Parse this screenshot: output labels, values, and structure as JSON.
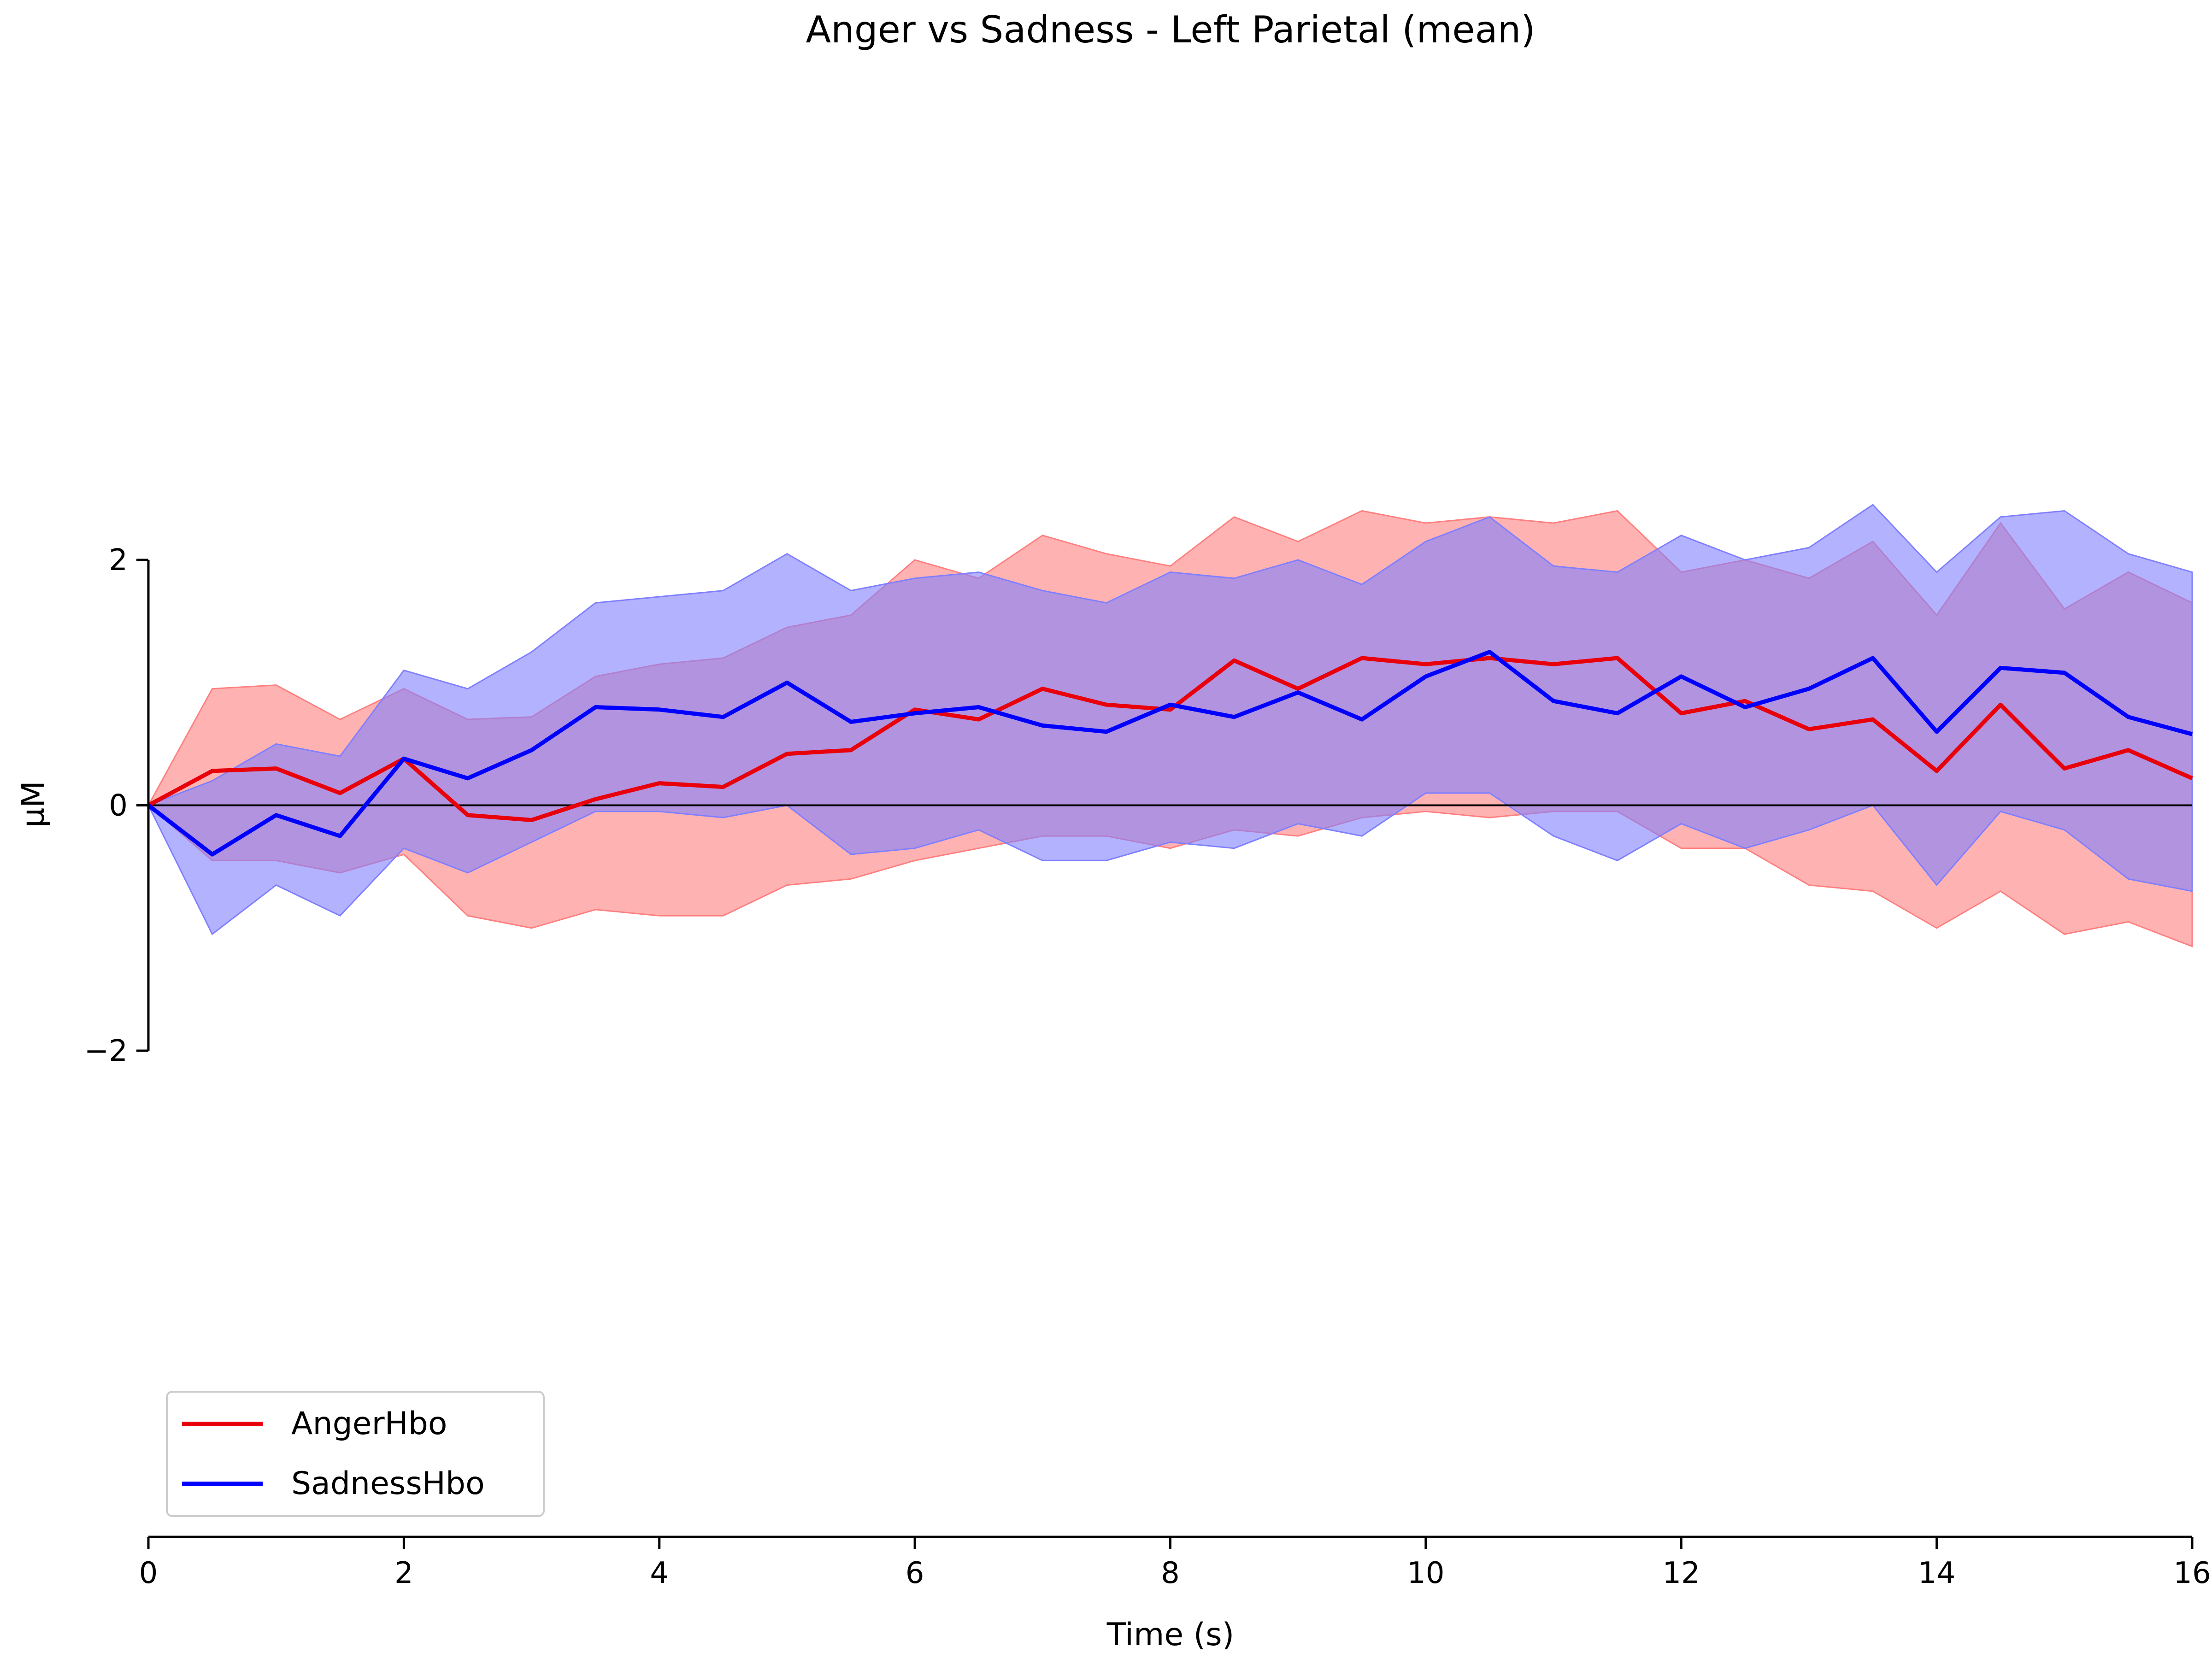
{
  "chart_data": {
    "type": "line",
    "title": "Anger vs Sadness - Left Parietal (mean)",
    "xlabel": "Time (s)",
    "ylabel": "μM",
    "xlim": [
      0,
      16
    ],
    "ylim": [
      -2,
      2
    ],
    "xticks": [
      0,
      2,
      4,
      6,
      8,
      10,
      12,
      14,
      16
    ],
    "yticks": [
      -2,
      0,
      2
    ],
    "ytick_labels": [
      "−2",
      "0",
      "2"
    ],
    "grid": false,
    "legend": "lower-left",
    "zero_line": true,
    "x": [
      0,
      0.5,
      1,
      1.5,
      2,
      2.5,
      3,
      3.5,
      4,
      4.5,
      5,
      5.5,
      6,
      6.5,
      7,
      7.5,
      8,
      8.5,
      9,
      9.5,
      10,
      10.5,
      11,
      11.5,
      12,
      12.5,
      13,
      13.5,
      14,
      14.5,
      15,
      15.5,
      16
    ],
    "series": [
      {
        "name": "AngerHbo",
        "color": "#e8000b",
        "band_color": "#ff7f7f",
        "values": [
          0,
          0.28,
          0.3,
          0.1,
          0.38,
          -0.08,
          -0.12,
          0.05,
          0.18,
          0.15,
          0.42,
          0.45,
          0.78,
          0.7,
          0.95,
          0.82,
          0.78,
          1.18,
          0.95,
          1.2,
          1.15,
          1.2,
          1.15,
          1.2,
          0.75,
          0.85,
          0.62,
          0.7,
          0.28,
          0.82,
          0.3,
          0.45,
          0.22
        ],
        "lower": [
          0,
          -0.45,
          -0.45,
          -0.55,
          -0.4,
          -0.9,
          -1.0,
          -0.85,
          -0.9,
          -0.9,
          -0.65,
          -0.6,
          -0.45,
          -0.35,
          -0.25,
          -0.25,
          -0.35,
          -0.2,
          -0.25,
          -0.1,
          -0.05,
          -0.1,
          -0.05,
          -0.05,
          -0.35,
          -0.35,
          -0.65,
          -0.7,
          -1.0,
          -0.7,
          -1.05,
          -0.95,
          -1.15
        ],
        "upper": [
          0,
          0.95,
          0.98,
          0.7,
          0.95,
          0.7,
          0.72,
          1.05,
          1.15,
          1.2,
          1.45,
          1.55,
          2.0,
          1.85,
          2.2,
          2.05,
          1.95,
          2.35,
          2.15,
          2.4,
          2.3,
          2.35,
          2.3,
          2.4,
          1.9,
          2.0,
          1.85,
          2.15,
          1.55,
          2.3,
          1.6,
          1.9,
          1.65
        ]
      },
      {
        "name": "SadnessHbo",
        "color": "#0000ff",
        "band_color": "#7f7fff",
        "values": [
          0,
          -0.4,
          -0.08,
          -0.25,
          0.38,
          0.22,
          0.45,
          0.8,
          0.78,
          0.72,
          1.0,
          0.68,
          0.75,
          0.8,
          0.65,
          0.6,
          0.82,
          0.72,
          0.92,
          0.7,
          1.05,
          1.25,
          0.85,
          0.75,
          1.05,
          0.8,
          0.95,
          1.2,
          0.6,
          1.12,
          1.08,
          0.72,
          0.58
        ],
        "lower": [
          0,
          -1.05,
          -0.65,
          -0.9,
          -0.35,
          -0.55,
          -0.3,
          -0.05,
          -0.05,
          -0.1,
          0.0,
          -0.4,
          -0.35,
          -0.2,
          -0.45,
          -0.45,
          -0.3,
          -0.35,
          -0.15,
          -0.25,
          0.1,
          0.1,
          -0.25,
          -0.45,
          -0.15,
          -0.35,
          -0.2,
          0.0,
          -0.65,
          -0.05,
          -0.2,
          -0.6,
          -0.7
        ],
        "upper": [
          0,
          0.2,
          0.5,
          0.4,
          1.1,
          0.95,
          1.25,
          1.65,
          1.7,
          1.75,
          2.05,
          1.75,
          1.85,
          1.9,
          1.75,
          1.65,
          1.9,
          1.85,
          2.0,
          1.8,
          2.15,
          2.35,
          1.95,
          1.9,
          2.2,
          2.0,
          2.1,
          2.45,
          1.9,
          2.35,
          2.4,
          2.05,
          1.9
        ]
      }
    ]
  }
}
